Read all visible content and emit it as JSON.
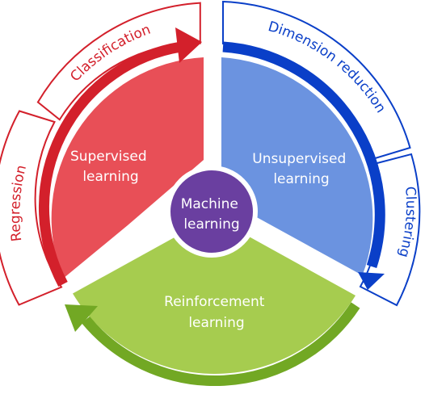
{
  "center": {
    "line1": "Machine",
    "line2": "learning",
    "color": "#6a3fa0"
  },
  "sectors": {
    "supervised": {
      "line1": "Supervised",
      "line2": "learning",
      "color": "#e84f57",
      "arrow_color": "#d3202b"
    },
    "unsupervised": {
      "line1": "Unsupervised",
      "line2": "learning",
      "color": "#6b93e0",
      "arrow_color": "#0a3fc8"
    },
    "reinforcement": {
      "line1": "Reinforcement",
      "line2": "learning",
      "color": "#a6cc4f",
      "arrow_color": "#72a824"
    }
  },
  "bands": {
    "classification": {
      "label": "Classification",
      "color": "#d3202b"
    },
    "regression": {
      "label": "Regression",
      "color": "#d3202b"
    },
    "dimension_reduction": {
      "label": "Dimension reduction",
      "color": "#0a3fc8"
    },
    "clustering": {
      "label": "Clustering",
      "color": "#0a3fc8"
    }
  }
}
